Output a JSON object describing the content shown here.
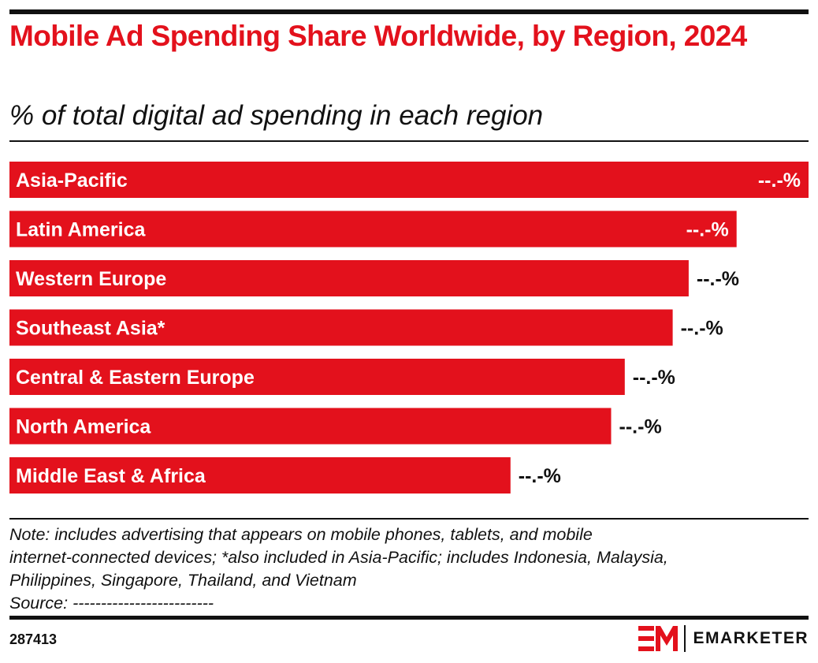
{
  "header": {
    "title": "Mobile Ad Spending Share Worldwide, by Region, 2024",
    "subtitle": "% of total digital ad spending in each region"
  },
  "chart_data": {
    "type": "bar",
    "orientation": "horizontal",
    "title": "Mobile Ad Spending Share Worldwide, by Region, 2024",
    "subtitle": "% of total digital ad spending in each region",
    "categories": [
      "Asia-Pacific",
      "Latin America",
      "Western Europe",
      "Southeast Asia*",
      "Central & Eastern Europe",
      "North America",
      "Middle East & Africa"
    ],
    "values": [
      100,
      91,
      85,
      83,
      77,
      75.3,
      62.7
    ],
    "value_scale_note": "relative bar lengths; printed data labels are masked",
    "data_labels": [
      "--.-%",
      "--.-%",
      "--.-%",
      "--.-%",
      "--.-%",
      "--.-%",
      "--.-%"
    ],
    "bar_color": "#e3111c",
    "grid": false,
    "legend": "none"
  },
  "footer": {
    "note_lines": [
      "Note: includes advertising that appears on mobile phones, tablets, and mobile",
      "internet-connected devices; *also included in Asia-Pacific; includes Indonesia, Malaysia,",
      "Philippines, Singapore, Thailand, and Vietnam",
      "Source: -------------------------"
    ],
    "chart_id": "287413",
    "brand_name": "EMARKETER"
  },
  "colors": {
    "accent": "#e3111c",
    "text": "#111111",
    "background": "#ffffff"
  }
}
